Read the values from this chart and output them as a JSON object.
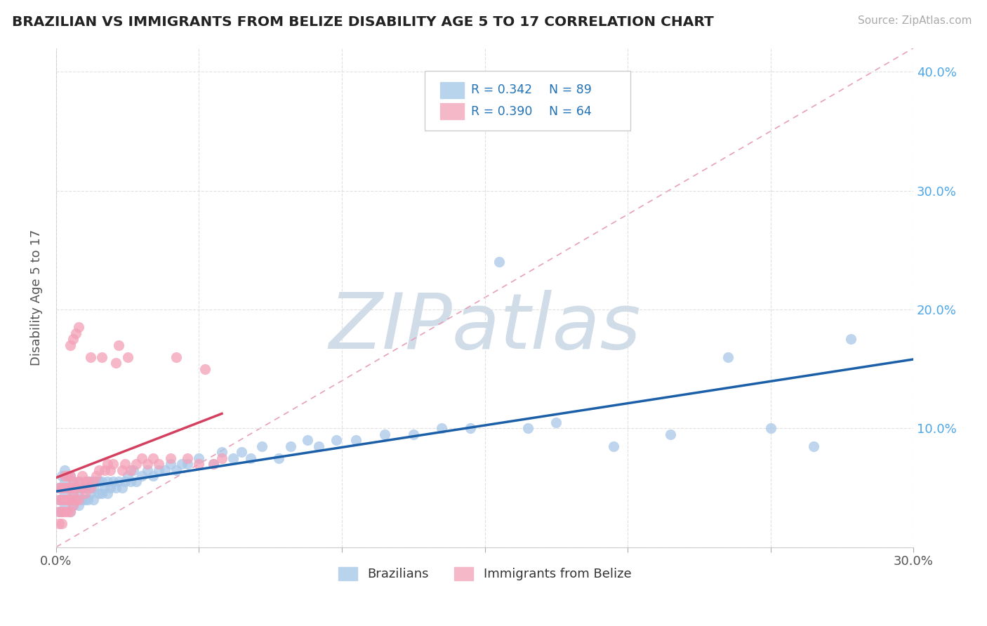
{
  "title": "BRAZILIAN VS IMMIGRANTS FROM BELIZE DISABILITY AGE 5 TO 17 CORRELATION CHART",
  "source": "Source: ZipAtlas.com",
  "xmin": 0.0,
  "xmax": 0.3,
  "ymin": 0.0,
  "ymax": 0.42,
  "legend_r1": "R = 0.342",
  "legend_n1": "N = 89",
  "legend_r2": "R = 0.390",
  "legend_n2": "N = 64",
  "blue_color": "#a8c8e8",
  "pink_color": "#f4a0b8",
  "blue_line_color": "#1a5fa8",
  "pink_line_color": "#d44060",
  "ref_line_color": "#e8a0b0",
  "watermark": "ZIPatlas",
  "watermark_color": "#d0dce8",
  "background_color": "#ffffff",
  "grid_color": "#dddddd",
  "blue_scatter_x": [
    0.001,
    0.001,
    0.001,
    0.002,
    0.002,
    0.002,
    0.002,
    0.003,
    0.003,
    0.003,
    0.003,
    0.004,
    0.004,
    0.004,
    0.005,
    0.005,
    0.005,
    0.005,
    0.006,
    0.006,
    0.006,
    0.007,
    0.007,
    0.008,
    0.008,
    0.008,
    0.009,
    0.009,
    0.01,
    0.01,
    0.011,
    0.011,
    0.012,
    0.012,
    0.013,
    0.013,
    0.014,
    0.015,
    0.015,
    0.016,
    0.016,
    0.017,
    0.018,
    0.018,
    0.019,
    0.02,
    0.021,
    0.022,
    0.023,
    0.024,
    0.025,
    0.026,
    0.027,
    0.028,
    0.03,
    0.032,
    0.034,
    0.036,
    0.038,
    0.04,
    0.042,
    0.044,
    0.046,
    0.05,
    0.055,
    0.058,
    0.062,
    0.065,
    0.068,
    0.072,
    0.078,
    0.082,
    0.088,
    0.092,
    0.098,
    0.105,
    0.115,
    0.125,
    0.135,
    0.145,
    0.155,
    0.165,
    0.175,
    0.195,
    0.215,
    0.235,
    0.25,
    0.265,
    0.278
  ],
  "blue_scatter_y": [
    0.03,
    0.04,
    0.05,
    0.03,
    0.04,
    0.05,
    0.06,
    0.035,
    0.045,
    0.055,
    0.065,
    0.04,
    0.05,
    0.06,
    0.03,
    0.04,
    0.05,
    0.06,
    0.035,
    0.045,
    0.055,
    0.04,
    0.05,
    0.035,
    0.045,
    0.055,
    0.04,
    0.05,
    0.04,
    0.05,
    0.04,
    0.055,
    0.045,
    0.055,
    0.04,
    0.05,
    0.055,
    0.045,
    0.055,
    0.045,
    0.055,
    0.05,
    0.045,
    0.055,
    0.05,
    0.055,
    0.05,
    0.055,
    0.05,
    0.055,
    0.06,
    0.055,
    0.065,
    0.055,
    0.06,
    0.065,
    0.06,
    0.065,
    0.065,
    0.07,
    0.065,
    0.07,
    0.07,
    0.075,
    0.07,
    0.08,
    0.075,
    0.08,
    0.075,
    0.085,
    0.075,
    0.085,
    0.09,
    0.085,
    0.09,
    0.09,
    0.095,
    0.095,
    0.1,
    0.1,
    0.24,
    0.1,
    0.105,
    0.085,
    0.095,
    0.16,
    0.1,
    0.085,
    0.175
  ],
  "pink_scatter_x": [
    0.001,
    0.001,
    0.001,
    0.001,
    0.002,
    0.002,
    0.002,
    0.002,
    0.003,
    0.003,
    0.003,
    0.003,
    0.004,
    0.004,
    0.004,
    0.004,
    0.005,
    0.005,
    0.005,
    0.005,
    0.005,
    0.006,
    0.006,
    0.006,
    0.006,
    0.007,
    0.007,
    0.007,
    0.008,
    0.008,
    0.008,
    0.009,
    0.009,
    0.01,
    0.01,
    0.011,
    0.012,
    0.012,
    0.013,
    0.014,
    0.015,
    0.016,
    0.017,
    0.018,
    0.019,
    0.02,
    0.021,
    0.022,
    0.023,
    0.024,
    0.025,
    0.026,
    0.028,
    0.03,
    0.032,
    0.034,
    0.036,
    0.04,
    0.042,
    0.046,
    0.05,
    0.052,
    0.055,
    0.058
  ],
  "pink_scatter_y": [
    0.02,
    0.03,
    0.04,
    0.05,
    0.02,
    0.03,
    0.04,
    0.05,
    0.03,
    0.04,
    0.05,
    0.06,
    0.03,
    0.04,
    0.05,
    0.06,
    0.03,
    0.04,
    0.05,
    0.06,
    0.17,
    0.035,
    0.045,
    0.055,
    0.175,
    0.04,
    0.05,
    0.18,
    0.04,
    0.055,
    0.185,
    0.05,
    0.06,
    0.045,
    0.055,
    0.055,
    0.05,
    0.16,
    0.055,
    0.06,
    0.065,
    0.16,
    0.065,
    0.07,
    0.065,
    0.07,
    0.155,
    0.17,
    0.065,
    0.07,
    0.16,
    0.065,
    0.07,
    0.075,
    0.07,
    0.075,
    0.07,
    0.075,
    0.16,
    0.075,
    0.07,
    0.15,
    0.07,
    0.075
  ]
}
